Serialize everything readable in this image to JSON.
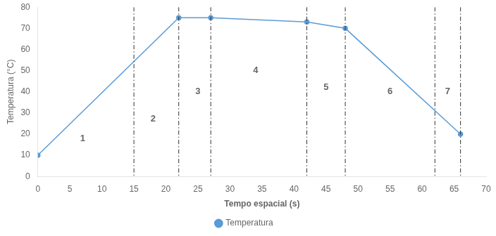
{
  "chart_data": {
    "type": "line",
    "x": [
      0,
      22,
      27,
      42,
      48,
      66
    ],
    "series": [
      {
        "name": "Temperatura",
        "color": "#5B9BD5",
        "marker": "circle",
        "line_style": "solid",
        "values": [
          10,
          75,
          75,
          73,
          70,
          20
        ]
      }
    ],
    "x_label": "Tempo espacial (s)",
    "y_label": "Temperatura (°C)",
    "xlim": [
      0,
      70
    ],
    "ylim": [
      0,
      80
    ],
    "xticks": [
      0,
      5,
      10,
      15,
      20,
      25,
      30,
      35,
      40,
      45,
      50,
      55,
      60,
      65,
      70
    ],
    "yticks": [
      0,
      10,
      20,
      30,
      40,
      50,
      60,
      70,
      80
    ],
    "vlines": {
      "values": [
        15,
        22,
        27,
        42,
        48,
        62,
        66
      ],
      "color": "#303030",
      "line_style": "dashdot"
    },
    "annotations": [
      {
        "text": "1",
        "x": 7,
        "y": 18
      },
      {
        "text": "2",
        "x": 18,
        "y": 27
      },
      {
        "text": "3",
        "x": 25,
        "y": 40
      },
      {
        "text": "4",
        "x": 34,
        "y": 50
      },
      {
        "text": "5",
        "x": 45,
        "y": 42
      },
      {
        "text": "6",
        "x": 55,
        "y": 40
      },
      {
        "text": "7",
        "x": 64,
        "y": 40
      }
    ],
    "grid": false,
    "legend": "bottom"
  }
}
